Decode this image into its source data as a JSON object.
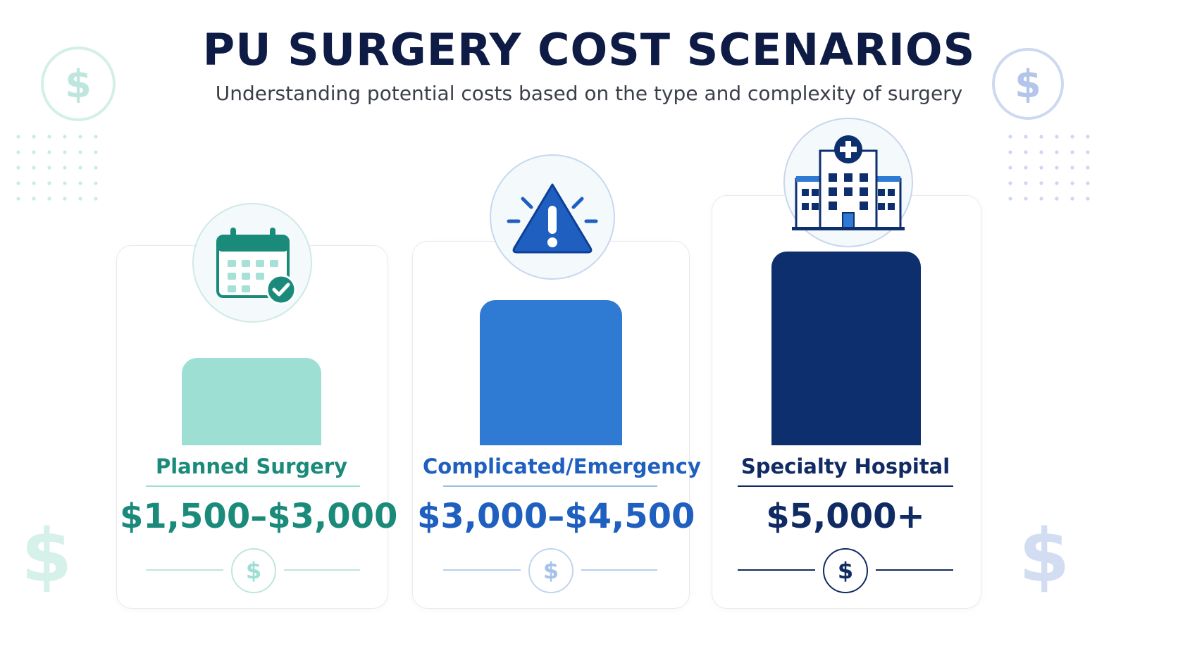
{
  "title": "PU SURGERY COST SCENARIOS",
  "subtitle": "Understanding potential costs based on the type and complexity of surgery",
  "currency_symbol": "$",
  "colors": {
    "teal": "#1a8a7a",
    "teal_bar": "#9ddfd3",
    "blue": "#1f5fbf",
    "blue_bar": "#2f7ad2",
    "navy": "#102a63",
    "navy_bar": "#0e2f6e",
    "title": "#0d1b45"
  },
  "chart_data": {
    "type": "bar",
    "categories": [
      "Planned Surgery",
      "Complicated/Emergency",
      "Specialty Hospital"
    ],
    "values": [
      2250,
      3750,
      5000
    ],
    "value_labels": [
      "$1,500–$3,000",
      "$3,000–$4,500",
      "$5,000+"
    ],
    "ranges": [
      [
        1500,
        3000
      ],
      [
        3000,
        4500
      ],
      [
        5000,
        null
      ]
    ],
    "icons": [
      "calendar-check-icon",
      "warning-triangle-icon",
      "hospital-building-icon"
    ],
    "title": "PU SURGERY COST SCENARIOS",
    "subtitle": "Understanding potential costs based on the type and complexity of surgery",
    "xlabel": "",
    "ylabel": "",
    "grid": false,
    "legend": "none"
  }
}
